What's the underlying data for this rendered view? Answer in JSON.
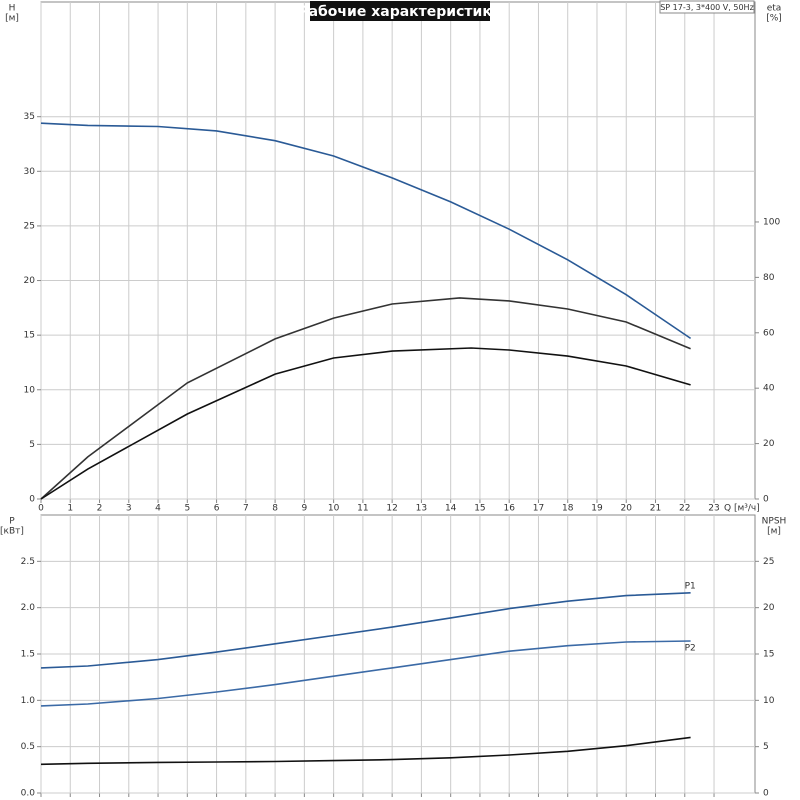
{
  "chart_data": [
    {
      "type": "line",
      "title": "Рабочие характеристики",
      "subtitle": "SP 17-3, 3*400 V, 50Hz",
      "ylabel": "H",
      "yunit": "[м]",
      "y2label": "eta",
      "y2unit": "[%]",
      "xlabel": "Q [м³/ч]",
      "xlim": [
        0,
        24.4
      ],
      "xticks": [
        0,
        1,
        2,
        3,
        4,
        5,
        6,
        7,
        8,
        9,
        10,
        11,
        12,
        13,
        14,
        15,
        16,
        17,
        18,
        19,
        20,
        21,
        22,
        23
      ],
      "ylim": [
        0,
        45.5
      ],
      "yticks": [
        0,
        5,
        10,
        15,
        20,
        25,
        30,
        35
      ],
      "y2lim": [
        0,
        179.4
      ],
      "y2ticks": [
        0,
        20,
        40,
        60,
        80,
        100
      ],
      "grid": true,
      "series": [
        {
          "color": "#2a5a96",
          "x": [
            0,
            1.6,
            4,
            6,
            8,
            10,
            12,
            14,
            16,
            18,
            20,
            22.2
          ],
          "values": [
            34.4,
            34.2,
            34.1,
            33.7,
            32.8,
            31.4,
            29.4,
            27.2,
            24.7,
            21.9,
            18.7,
            14.7
          ]
        },
        {
          "color": "#333333",
          "axis": "y2",
          "x": [
            0,
            1.6,
            5,
            8,
            10,
            12,
            14.3,
            16,
            18,
            20,
            22.2
          ],
          "values": [
            0,
            15.2,
            41.9,
            57.8,
            65.3,
            70.4,
            72.6,
            71.5,
            68.6,
            63.9,
            54.2
          ]
        },
        {
          "color": "#111111",
          "axis": "y2",
          "x": [
            0,
            1.6,
            5,
            8,
            10,
            12,
            14.7,
            16,
            18,
            20,
            22.2
          ],
          "values": [
            0,
            10.8,
            30.7,
            45.1,
            50.9,
            53.4,
            54.5,
            53.8,
            51.6,
            48,
            41.2
          ]
        }
      ]
    },
    {
      "type": "line",
      "ylabel": "P",
      "yunit": "[кВт]",
      "y2label": "NPSH",
      "y2unit": "[м]",
      "xlim": [
        0,
        24.4
      ],
      "xticks": [
        0,
        1,
        2,
        3,
        4,
        5,
        6,
        7,
        8,
        9,
        10,
        11,
        12,
        13,
        14,
        15,
        16,
        17,
        18,
        19,
        20,
        21,
        22,
        23
      ],
      "ylim": [
        0,
        3.0
      ],
      "yticks": [
        {
          "value": 0,
          "label": "0.0"
        },
        0.5,
        {
          "value": 1,
          "label": "1.0"
        },
        1.5,
        {
          "value": 2,
          "label": "2.0"
        },
        2.5
      ],
      "y2lim": [
        0,
        30
      ],
      "y2ticks": [
        0,
        5,
        10,
        15,
        20,
        25
      ],
      "grid": true,
      "series": [
        {
          "name": "P1",
          "color": "#2a5a96",
          "x": [
            0,
            1.6,
            4,
            6,
            8,
            10,
            12,
            14,
            16,
            18,
            20,
            22.2
          ],
          "values": [
            1.35,
            1.37,
            1.44,
            1.52,
            1.61,
            1.7,
            1.79,
            1.89,
            1.99,
            2.07,
            2.13,
            2.16
          ]
        },
        {
          "name": "P2",
          "color": "#3b6aa6",
          "x": [
            0,
            1.6,
            4,
            6,
            8,
            10,
            12,
            14,
            16,
            18,
            20,
            22.2
          ],
          "values": [
            0.94,
            0.96,
            1.02,
            1.09,
            1.17,
            1.26,
            1.35,
            1.44,
            1.53,
            1.59,
            1.63,
            1.64
          ]
        },
        {
          "color": "#111111",
          "axis": "y2",
          "x": [
            0,
            1.6,
            4,
            6,
            8,
            10,
            12,
            14,
            16,
            18,
            20,
            22.2
          ],
          "values": [
            3.1,
            3.2,
            3.3,
            3.35,
            3.4,
            3.5,
            3.6,
            3.8,
            4.1,
            4.5,
            5.1,
            6.0
          ]
        }
      ]
    }
  ]
}
